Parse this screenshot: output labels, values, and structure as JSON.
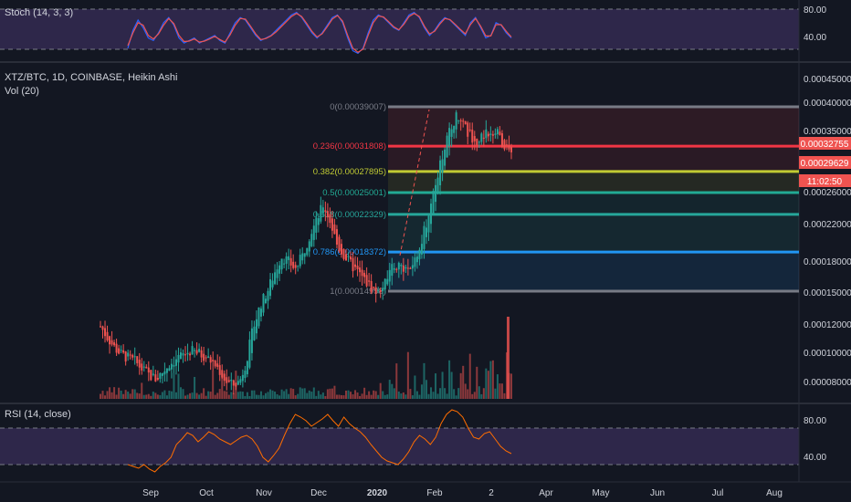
{
  "stoch_pane": {
    "title": "Stoch (14, 3, 3)",
    "ticks": [
      "80.00",
      "40.00"
    ],
    "band_color": "#7e57c2"
  },
  "main_pane": {
    "title": "XTZ/BTC, 1D, COINBASE, Heikin Ashi",
    "vol_label": "Vol (20)",
    "price_ticks": [
      "0.00045000",
      "0.00040000",
      "0.00035000",
      "0.00030000",
      "0.00026000",
      "0.00022000",
      "0.00018000",
      "0.00015000",
      "0.00012000",
      "0.00010000",
      "0.00008000"
    ],
    "price_tags": [
      {
        "text": "0.00032755",
        "color": "#ef5350"
      },
      {
        "text": "0.00029629",
        "color": "#ef5350"
      },
      {
        "text": "11:02:50",
        "color": "#ef5350"
      }
    ]
  },
  "rsi_pane": {
    "title": "RSI (14, close)",
    "ticks": [
      "80.00",
      "40.00"
    ],
    "line_color": "#ff6d00",
    "band_color": "#7e57c2"
  },
  "x_axis": {
    "labels": [
      "Sep",
      "Oct",
      "Nov",
      "Dec",
      "2020",
      "Feb",
      "2",
      "Apr",
      "May",
      "Jun",
      "Jul",
      "Aug"
    ]
  },
  "chart_data": [
    {
      "type": "line",
      "pane": "stoch",
      "ylim": [
        0,
        100
      ],
      "bands": [
        20,
        80
      ],
      "series": [
        {
          "color": "#2962ff",
          "values": [
            20,
            55,
            75,
            60,
            40,
            35,
            50,
            70,
            80,
            65,
            40,
            30,
            35,
            40,
            30,
            35,
            40,
            45,
            35,
            30,
            50,
            70,
            80,
            75,
            60,
            45,
            35,
            40,
            45,
            55,
            65,
            75,
            85,
            90,
            80,
            65,
            50,
            40,
            50,
            65,
            80,
            85,
            70,
            40,
            15,
            10,
            20,
            50,
            75,
            85,
            80,
            70,
            60,
            55,
            70,
            85,
            90,
            80,
            60,
            45,
            55,
            70,
            80,
            75,
            65,
            55,
            45,
            70,
            80,
            60,
            40,
            45,
            70,
            65,
            50,
            40
          ]
        },
        {
          "color": "#ef5350",
          "values": [
            25,
            50,
            70,
            65,
            45,
            38,
            48,
            65,
            78,
            68,
            45,
            33,
            34,
            38,
            32,
            34,
            38,
            43,
            37,
            32,
            46,
            65,
            78,
            77,
            63,
            48,
            37,
            39,
            44,
            52,
            62,
            72,
            82,
            88,
            82,
            68,
            53,
            42,
            48,
            62,
            77,
            84,
            73,
            45,
            20,
            12,
            18,
            45,
            70,
            83,
            81,
            72,
            62,
            56,
            67,
            82,
            88,
            82,
            63,
            48,
            53,
            67,
            78,
            76,
            67,
            57,
            48,
            66,
            78,
            63,
            44,
            44,
            66,
            66,
            53,
            42
          ]
        }
      ]
    },
    {
      "type": "candlestick",
      "pane": "price",
      "style": "Heikin Ashi",
      "ylim": [
        7e-05,
        0.00045
      ],
      "y_scale": "log",
      "fib_levels": [
        {
          "ratio": "0",
          "value": "0.00039007",
          "color": "#787b86"
        },
        {
          "ratio": "0.236",
          "value": "0.00031808",
          "color": "#f23645"
        },
        {
          "ratio": "0.382",
          "value": "0.00027895",
          "color": "#c0ca33"
        },
        {
          "ratio": "0.5",
          "value": "0.00025001",
          "color": "#22ab94"
        },
        {
          "ratio": "0.618",
          "value": "0.00022329",
          "color": "#26a69a"
        },
        {
          "ratio": "0.786",
          "value": "0.00018372",
          "color": "#2196f3"
        },
        {
          "ratio": "1",
          "value": "0.00014998",
          "color": "#787b86"
        }
      ],
      "close_path": [
        0.000125,
        0.000118,
        0.000112,
        0.000108,
        0.000106,
        0.000104,
        0.0001,
        9.7e-05,
        9.5e-05,
        9.9e-05,
        0.000103,
        0.000106,
        0.000108,
        0.00011,
        0.000109,
        0.000107,
        0.000104,
        0.0001,
        9.4e-05,
        9.2e-05,
        9.4e-05,
        0.000105,
        0.000125,
        0.00014,
        0.00015,
        0.000165,
        0.00018,
        0.000175,
        0.000168,
        0.00018,
        0.0002,
        0.000215,
        0.000235,
        0.000215,
        0.00019,
        0.00018,
        0.000172,
        0.000165,
        0.000158,
        0.000152,
        0.000148,
        0.000158,
        0.00017,
        0.000172,
        0.000168,
        0.000175,
        0.00019,
        0.00022,
        0.00026,
        0.0003,
        0.00034,
        0.00037,
        0.000355,
        0.00034,
        0.00032,
        0.000335,
        0.000345,
        0.00034,
        0.00032,
        0.0003
      ]
    },
    {
      "type": "line",
      "pane": "rsi",
      "ylim": [
        20,
        100
      ],
      "bands": [
        30,
        70
      ],
      "values": [
        30,
        28,
        26,
        30,
        25,
        22,
        28,
        32,
        38,
        52,
        58,
        65,
        62,
        55,
        60,
        66,
        63,
        58,
        55,
        52,
        56,
        60,
        62,
        58,
        50,
        38,
        33,
        40,
        48,
        62,
        75,
        85,
        82,
        78,
        72,
        76,
        80,
        85,
        78,
        72,
        82,
        75,
        70,
        66,
        60,
        52,
        45,
        38,
        34,
        32,
        30,
        36,
        44,
        55,
        62,
        58,
        52,
        60,
        75,
        85,
        90,
        88,
        82,
        70,
        60,
        58,
        64,
        66,
        58,
        50,
        45,
        42
      ]
    }
  ]
}
